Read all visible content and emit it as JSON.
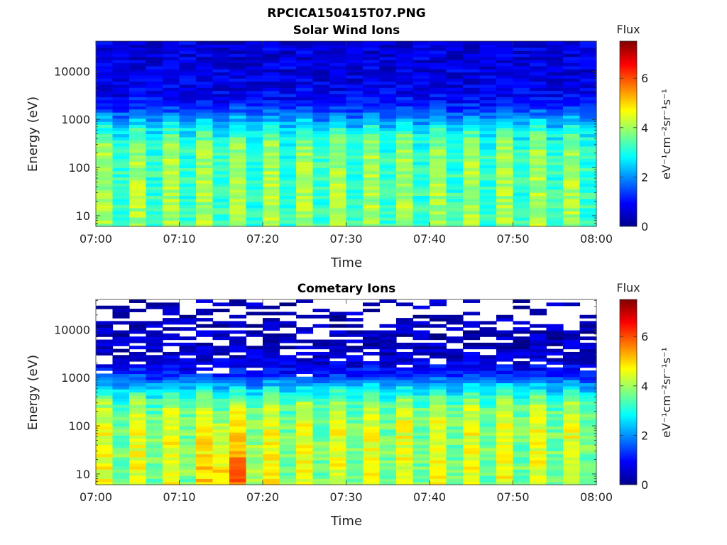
{
  "figure_title": "RPCICA150415T07.PNG",
  "chart_data": [
    {
      "type": "heatmap",
      "title": "Solar Wind Ions",
      "xlabel": "Time",
      "ylabel": "Energy (eV)",
      "x_ticks": [
        "07:00",
        "07:10",
        "07:20",
        "07:30",
        "07:40",
        "07:50",
        "08:00"
      ],
      "x_range": [
        "07:00",
        "08:00"
      ],
      "y_scale": "log",
      "y_ticks": [
        "10",
        "100",
        "1000",
        "10000"
      ],
      "y_range": [
        6,
        42000
      ],
      "colorbar": {
        "title": "Flux",
        "label": "eV⁻¹cm⁻²sr⁻¹s⁻¹",
        "ticks": [
          "0",
          "2",
          "4",
          "6"
        ],
        "range": [
          0,
          7.5
        ],
        "colormap": "jet"
      },
      "grid": false,
      "pattern": {
        "num_sweeps": 30,
        "num_energy_bins": 60,
        "low_energy_flux": 3.5,
        "rolloff_energy_ev": 1000,
        "high_energy_flux": 0.7,
        "cell_gaps": false
      }
    },
    {
      "type": "heatmap",
      "title": "Cometary Ions",
      "xlabel": "Time",
      "ylabel": "Energy (eV)",
      "x_ticks": [
        "07:00",
        "07:10",
        "07:20",
        "07:30",
        "07:40",
        "07:50",
        "08:00"
      ],
      "x_range": [
        "07:00",
        "08:00"
      ],
      "y_scale": "log",
      "y_ticks": [
        "10",
        "100",
        "1000",
        "10000"
      ],
      "y_range": [
        6,
        42000
      ],
      "colorbar": {
        "title": "Flux",
        "label": "eV⁻¹cm⁻²sr⁻¹s⁻¹",
        "ticks": [
          "0",
          "2",
          "4",
          "6"
        ],
        "range": [
          0,
          7.5
        ],
        "colormap": "jet"
      },
      "grid": false,
      "pattern": {
        "num_sweeps": 30,
        "num_energy_bins": 60,
        "low_energy_flux": 4.0,
        "rolloff_energy_ev": 700,
        "high_energy_flux": 0.4,
        "cell_gaps": true,
        "peak_flux": 5.6,
        "peak_time": "07:16"
      }
    }
  ]
}
